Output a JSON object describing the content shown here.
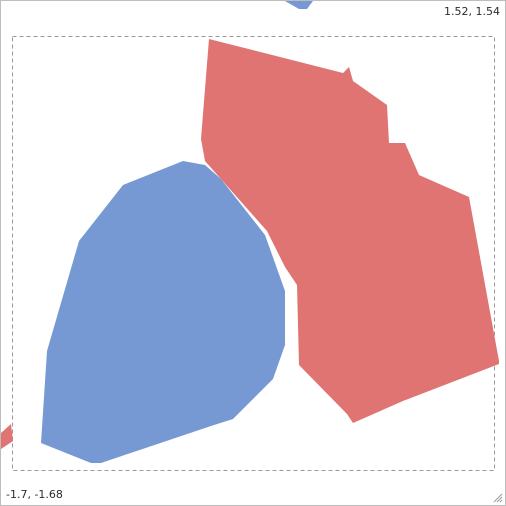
{
  "viewport": {
    "extent_max_label": "1.52, 1.54",
    "extent_min_label": "-1.7, -1.68"
  },
  "colors": {
    "blue_polygon": "#7799d3",
    "red_polygon": "#df7473",
    "frame_dash": "#999999",
    "background": "#ffffff"
  },
  "icons": {
    "resize_grip": "resize-grip-icon"
  }
}
